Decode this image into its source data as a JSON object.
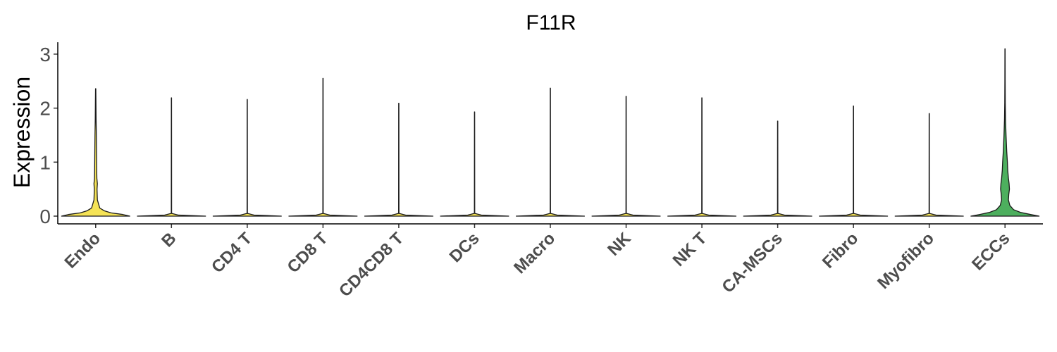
{
  "chart_data": {
    "type": "violin",
    "title": "F11R",
    "xlabel": "",
    "ylabel": "Expression",
    "ylim": [
      -0.13,
      3.22
    ],
    "yticks": [
      0,
      1,
      2,
      3
    ],
    "legend": "none",
    "grid": false,
    "categories": [
      "Endo",
      "B",
      "CD4 T",
      "CD8 T",
      "CD4CD8 T",
      "DCs",
      "Macro",
      "NK",
      "NK T",
      "CA-MSCs",
      "Fibro",
      "Myofibro",
      "ECCs"
    ],
    "series": [
      {
        "category": "Endo",
        "color": "#F5E356",
        "max": 2.36,
        "density": [
          [
            0,
            1.0
          ],
          [
            0.03,
            0.8
          ],
          [
            0.06,
            0.45
          ],
          [
            0.1,
            0.25
          ],
          [
            0.15,
            0.12
          ],
          [
            0.3,
            0.05
          ],
          [
            0.5,
            0.04
          ],
          [
            0.6,
            0.05
          ],
          [
            0.7,
            0.035
          ],
          [
            0.9,
            0.03
          ],
          [
            1.2,
            0.025
          ],
          [
            1.5,
            0.02
          ],
          [
            1.8,
            0.012
          ],
          [
            2.1,
            0.008
          ],
          [
            2.36,
            0.004
          ]
        ]
      },
      {
        "category": "B",
        "color": "#F5E356",
        "max": 2.19,
        "density": [
          [
            0,
            1.0
          ],
          [
            0.02,
            0.2
          ],
          [
            0.05,
            0.005
          ],
          [
            2.19,
            0.003
          ]
        ]
      },
      {
        "category": "CD4 T",
        "color": "#F5E356",
        "max": 2.16,
        "density": [
          [
            0,
            1.0
          ],
          [
            0.02,
            0.2
          ],
          [
            0.05,
            0.005
          ],
          [
            2.16,
            0.003
          ]
        ]
      },
      {
        "category": "CD8 T",
        "color": "#F5E356",
        "max": 2.55,
        "density": [
          [
            0,
            1.0
          ],
          [
            0.02,
            0.2
          ],
          [
            0.05,
            0.005
          ],
          [
            2.55,
            0.003
          ]
        ]
      },
      {
        "category": "CD4CD8 T",
        "color": "#F5E356",
        "max": 2.09,
        "density": [
          [
            0,
            1.0
          ],
          [
            0.02,
            0.2
          ],
          [
            0.05,
            0.005
          ],
          [
            2.09,
            0.003
          ]
        ]
      },
      {
        "category": "DCs",
        "color": "#F5E356",
        "max": 1.93,
        "density": [
          [
            0,
            1.0
          ],
          [
            0.02,
            0.2
          ],
          [
            0.05,
            0.005
          ],
          [
            1.93,
            0.003
          ]
        ]
      },
      {
        "category": "Macro",
        "color": "#F5E356",
        "max": 2.37,
        "density": [
          [
            0,
            1.0
          ],
          [
            0.02,
            0.2
          ],
          [
            0.05,
            0.005
          ],
          [
            2.37,
            0.003
          ]
        ]
      },
      {
        "category": "NK",
        "color": "#F5E356",
        "max": 2.22,
        "density": [
          [
            0,
            1.0
          ],
          [
            0.02,
            0.2
          ],
          [
            0.05,
            0.005
          ],
          [
            2.22,
            0.003
          ]
        ]
      },
      {
        "category": "NK T",
        "color": "#F5E356",
        "max": 2.19,
        "density": [
          [
            0,
            1.0
          ],
          [
            0.02,
            0.2
          ],
          [
            0.05,
            0.005
          ],
          [
            2.19,
            0.003
          ]
        ]
      },
      {
        "category": "CA-MSCs",
        "color": "#F5E356",
        "max": 1.76,
        "density": [
          [
            0,
            1.0
          ],
          [
            0.02,
            0.2
          ],
          [
            0.05,
            0.005
          ],
          [
            1.76,
            0.003
          ]
        ]
      },
      {
        "category": "Fibro",
        "color": "#F5E356",
        "max": 2.04,
        "density": [
          [
            0,
            1.0
          ],
          [
            0.02,
            0.2
          ],
          [
            0.05,
            0.005
          ],
          [
            2.04,
            0.003
          ]
        ]
      },
      {
        "category": "Myofibro",
        "color": "#F5E356",
        "max": 1.9,
        "density": [
          [
            0,
            1.0
          ],
          [
            0.02,
            0.2
          ],
          [
            0.05,
            0.005
          ],
          [
            1.9,
            0.003
          ]
        ]
      },
      {
        "category": "ECCs",
        "color": "#4DAF5E",
        "max": 3.1,
        "density": [
          [
            0,
            1.0
          ],
          [
            0.03,
            0.75
          ],
          [
            0.07,
            0.45
          ],
          [
            0.12,
            0.25
          ],
          [
            0.2,
            0.14
          ],
          [
            0.3,
            0.1
          ],
          [
            0.4,
            0.11
          ],
          [
            0.5,
            0.13
          ],
          [
            0.6,
            0.12
          ],
          [
            0.7,
            0.1
          ],
          [
            0.85,
            0.08
          ],
          [
            1.0,
            0.07
          ],
          [
            1.2,
            0.05
          ],
          [
            1.5,
            0.03
          ],
          [
            1.8,
            0.015
          ],
          [
            2.1,
            0.008
          ],
          [
            2.5,
            0.005
          ],
          [
            3.1,
            0.003
          ]
        ]
      }
    ]
  }
}
